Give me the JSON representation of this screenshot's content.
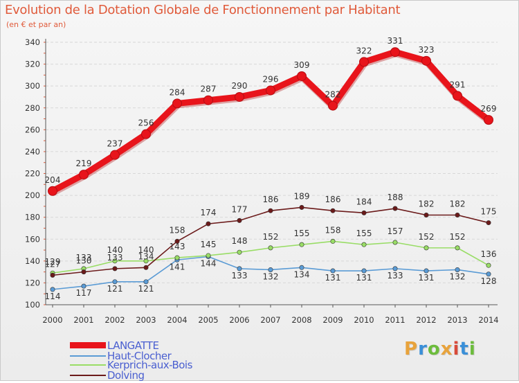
{
  "title": "Evolution de la Dotation Globale de Fonctionnement par Habitant",
  "subtitle": "(en € et par an)",
  "logo": {
    "text": "Proxiti",
    "colors": [
      "#e8a33c",
      "#3a8fd8",
      "#6cbc3c",
      "#e8a33c",
      "#d84a3a",
      "#3a8fd8",
      "#6cbc3c"
    ]
  },
  "chart_data": {
    "type": "line",
    "x": [
      "2000",
      "2001",
      "2002",
      "2003",
      "2004",
      "2005",
      "2006",
      "2007",
      "2008",
      "2009",
      "2010",
      "2011",
      "2012",
      "2013",
      "2014"
    ],
    "ylim": [
      100,
      340
    ],
    "yticks": [
      100,
      120,
      140,
      160,
      180,
      200,
      220,
      240,
      260,
      280,
      300,
      320,
      340
    ],
    "grid": "horizontal",
    "legend_position": "bottom-left",
    "series": [
      {
        "name": "LANGATTE",
        "color": "#e8141b",
        "values": [
          204,
          219,
          237,
          256,
          284,
          287,
          290,
          296,
          309,
          282,
          322,
          331,
          323,
          291,
          269
        ]
      },
      {
        "name": "Haut-Clocher",
        "color": "#5a9bd5",
        "values": [
          114,
          117,
          121,
          121,
          141,
          144,
          133,
          132,
          134,
          131,
          131,
          133,
          131,
          132,
          128
        ]
      },
      {
        "name": "Kerprich-aux-Bois",
        "color": "#99dd66",
        "values": [
          129,
          133,
          140,
          140,
          143,
          145,
          148,
          152,
          155,
          158,
          155,
          157,
          152,
          152,
          136
        ]
      },
      {
        "name": "Dolving",
        "color": "#6b1a1a",
        "values": [
          127,
          130,
          133,
          134,
          158,
          174,
          177,
          186,
          189,
          186,
          184,
          188,
          182,
          182,
          175
        ]
      }
    ]
  }
}
